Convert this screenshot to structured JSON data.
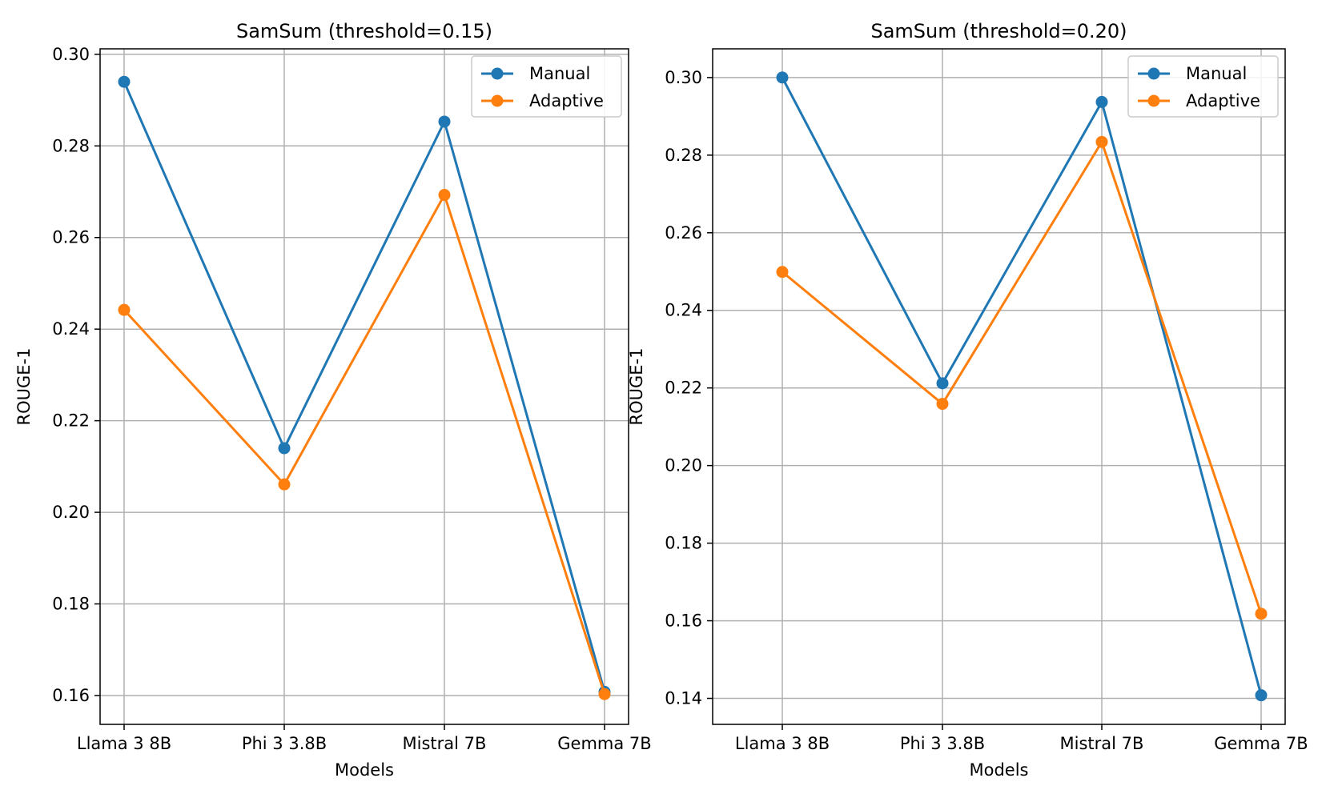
{
  "chart_data": [
    {
      "type": "line",
      "title": "SamSum (threshold=0.15)",
      "xlabel": "Models",
      "ylabel": "ROUGE-1",
      "categories": [
        "Llama 3 8B",
        "Phi 3 3.8B",
        "Mistral 7B",
        "Gemma 7B"
      ],
      "ylim": [
        0.1537,
        0.3012
      ],
      "yticks": [
        0.16,
        0.18,
        0.2,
        0.22,
        0.24,
        0.26,
        0.28,
        0.3
      ],
      "ytick_labels": [
        "0.16",
        "0.18",
        "0.20",
        "0.22",
        "0.24",
        "0.26",
        "0.28",
        "0.30"
      ],
      "grid": true,
      "legend": "upper right",
      "series": [
        {
          "name": "Manual",
          "color": "#1f77b4",
          "values": [
            0.294,
            0.214,
            0.2853,
            0.1608
          ]
        },
        {
          "name": "Adaptive",
          "color": "#ff7f0e",
          "values": [
            0.2442,
            0.2061,
            0.2693,
            0.1603
          ]
        }
      ]
    },
    {
      "type": "line",
      "title": "SamSum (threshold=0.20)",
      "xlabel": "Models",
      "ylabel": "ROUGE-1",
      "categories": [
        "Llama 3 8B",
        "Phi 3 3.8B",
        "Mistral 7B",
        "Gemma 7B"
      ],
      "ylim": [
        0.1333,
        0.3074
      ],
      "yticks": [
        0.14,
        0.16,
        0.18,
        0.2,
        0.22,
        0.24,
        0.26,
        0.28,
        0.3
      ],
      "ytick_labels": [
        "0.14",
        "0.16",
        "0.18",
        "0.20",
        "0.22",
        "0.24",
        "0.26",
        "0.28",
        "0.30"
      ],
      "grid": true,
      "legend": "upper right",
      "series": [
        {
          "name": "Manual",
          "color": "#1f77b4",
          "values": [
            0.3,
            0.2212,
            0.2937,
            0.1408
          ]
        },
        {
          "name": "Adaptive",
          "color": "#ff7f0e",
          "values": [
            0.2499,
            0.2159,
            0.2834,
            0.1618
          ]
        }
      ]
    }
  ]
}
